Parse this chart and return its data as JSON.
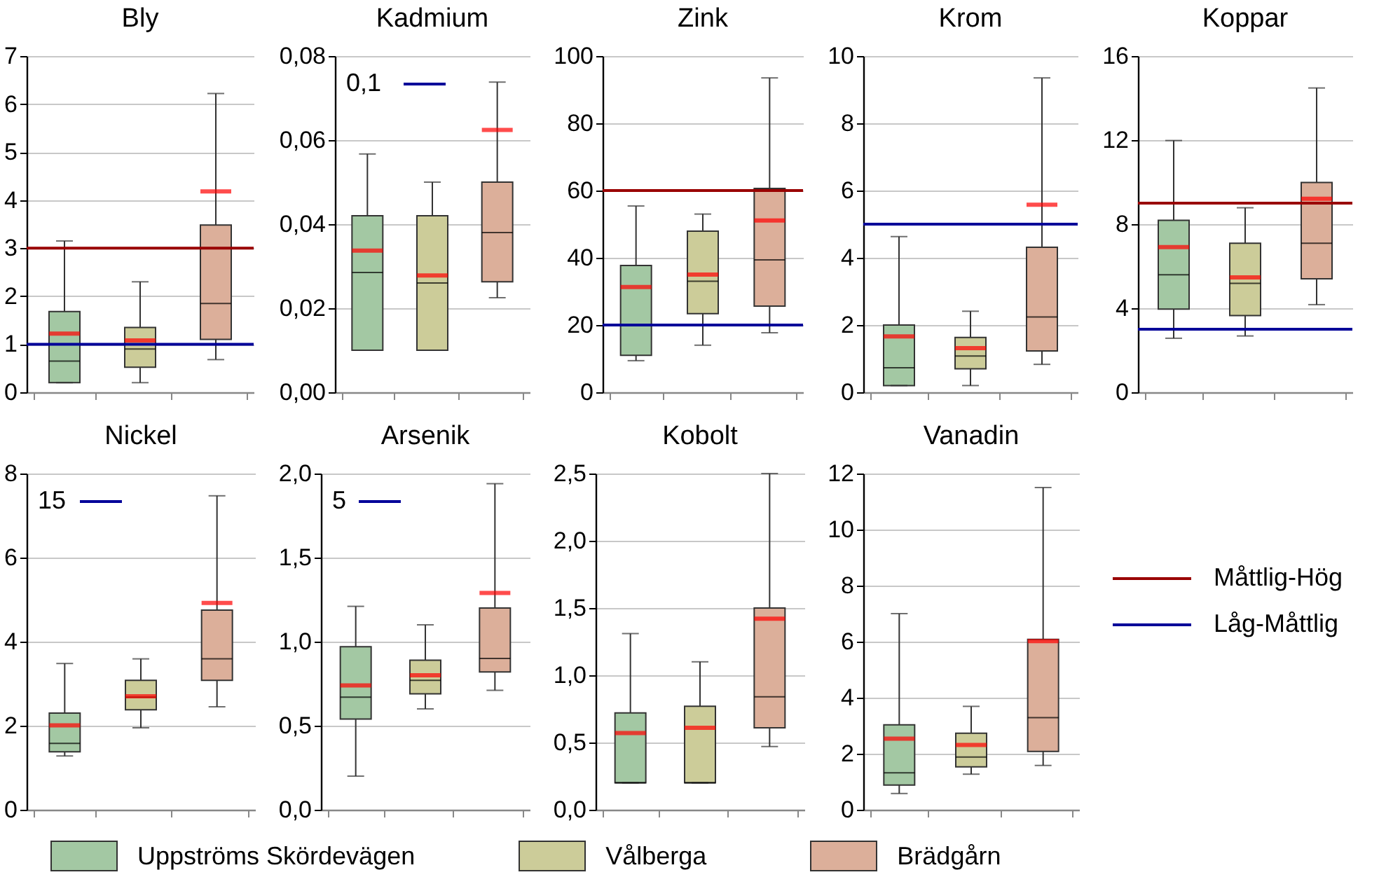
{
  "chart_data": [
    {
      "type": "box",
      "title": "Bly",
      "categories": [
        null,
        null,
        null
      ],
      "ylim": [
        0,
        7
      ],
      "yticks": [
        0,
        1,
        2,
        3,
        4,
        5,
        6,
        7
      ],
      "grid": "y",
      "legend": "bottom",
      "series": [
        {
          "name": "Uppströms Skördevägen",
          "color": "#a3c8a3",
          "boxes": [
            {
              "low": 0.2,
              "q1": 0.2,
              "median": 0.65,
              "q3": 1.68,
              "high": 3.15,
              "mean": 1.22
            },
            null,
            null
          ]
        },
        {
          "name": "Vålberga",
          "color": "#cccc99",
          "boxes": [
            null,
            {
              "low": 0.2,
              "q1": 0.52,
              "median": 0.9,
              "q3": 1.35,
              "high": 2.3,
              "mean": 1.08
            },
            null
          ]
        },
        {
          "name": "Brädgårn",
          "color": "#dcaf9a",
          "boxes": [
            null,
            null,
            {
              "low": 0.68,
              "q1": 1.1,
              "median": 1.85,
              "q3": 3.48,
              "high": 6.22,
              "mean": 4.18
            }
          ]
        }
      ],
      "ref_lines": [
        {
          "axis": "y",
          "value": 3,
          "label": "Måttlig-Hög",
          "color": "#990000"
        },
        {
          "axis": "y",
          "value": 1,
          "label": "Låg-Måttlig",
          "color": "#000099"
        }
      ]
    },
    {
      "type": "box",
      "title": "Kadmium",
      "categories": [
        null,
        null,
        null
      ],
      "ylim": [
        0,
        0.08
      ],
      "yticks": [
        {
          "value": 0,
          "label": "0,00"
        },
        {
          "value": 0.02,
          "label": "0,02"
        },
        {
          "value": 0.04,
          "label": "0,04"
        },
        {
          "value": 0.06,
          "label": "0,06"
        },
        {
          "value": 0.08,
          "label": "0,08"
        }
      ],
      "grid": "y",
      "series": [
        {
          "color": "#a3c8a3",
          "boxes": [
            {
              "low": 0.01,
              "q1": 0.01,
              "median": 0.0285,
              "q3": 0.042,
              "high": 0.0567,
              "mean": 0.0337
            },
            null,
            null
          ]
        },
        {
          "color": "#cccc99",
          "boxes": [
            null,
            {
              "low": 0.01,
              "q1": 0.01,
              "median": 0.026,
              "q3": 0.042,
              "high": 0.05,
              "mean": 0.0278
            },
            null
          ]
        },
        {
          "color": "#dcaf9a",
          "boxes": [
            null,
            null,
            {
              "low": 0.0225,
              "q1": 0.0263,
              "median": 0.038,
              "q3": 0.05,
              "high": 0.0738,
              "mean": 0.0624
            }
          ]
        }
      ],
      "annotations": [
        "0,1"
      ]
    },
    {
      "type": "box",
      "title": "Zink",
      "categories": [
        null,
        null,
        null
      ],
      "ylim": [
        0,
        100
      ],
      "yticks": [
        0,
        20,
        40,
        60,
        80,
        100
      ],
      "grid": "y",
      "series": [
        {
          "color": "#a3c8a3",
          "boxes": [
            {
              "low": 9.4,
              "q1": 11,
              "median": 20,
              "q3": 37.7,
              "high": 55.4,
              "mean": 31.3
            },
            null,
            null
          ]
        },
        {
          "color": "#cccc99",
          "boxes": [
            null,
            {
              "low": 14,
              "q1": 23.4,
              "median": 33,
              "q3": 47.9,
              "high": 53,
              "mean": 35
            },
            null
          ]
        },
        {
          "color": "#dcaf9a",
          "boxes": [
            null,
            null,
            {
              "low": 17.7,
              "q1": 25.6,
              "median": 39.4,
              "q3": 60.6,
              "high": 93.5,
              "mean": 51.1
            }
          ]
        }
      ],
      "ref_lines": [
        {
          "axis": "y",
          "value": 60,
          "color": "#990000"
        },
        {
          "axis": "y",
          "value": 20,
          "color": "#000099"
        }
      ]
    },
    {
      "type": "box",
      "title": "Krom",
      "categories": [
        null,
        null,
        null
      ],
      "ylim": [
        0,
        10
      ],
      "yticks": [
        0,
        2,
        4,
        6,
        8,
        10
      ],
      "grid": "y",
      "series": [
        {
          "color": "#a3c8a3",
          "boxes": [
            {
              "low": 0.2,
              "q1": 0.2,
              "median": 0.73,
              "q3": 2.0,
              "high": 4.63,
              "mean": 1.66
            },
            null,
            null
          ]
        },
        {
          "color": "#cccc99",
          "boxes": [
            null,
            {
              "low": 0.2,
              "q1": 0.7,
              "median": 1.08,
              "q3": 1.63,
              "high": 2.41,
              "mean": 1.31
            },
            null
          ]
        },
        {
          "color": "#dcaf9a",
          "boxes": [
            null,
            null,
            {
              "low": 0.83,
              "q1": 1.23,
              "median": 2.24,
              "q3": 4.31,
              "high": 9.35,
              "mean": 5.58
            }
          ]
        }
      ],
      "ref_lines": [
        {
          "axis": "y",
          "value": 5,
          "color": "#000099"
        }
      ]
    },
    {
      "type": "box",
      "title": "Koppar",
      "categories": [
        null,
        null,
        null
      ],
      "ylim": [
        0,
        16
      ],
      "yticks": [
        0,
        4,
        8,
        12,
        16
      ],
      "grid": "y",
      "series": [
        {
          "color": "#a3c8a3",
          "boxes": [
            {
              "low": 2.57,
              "q1": 3.96,
              "median": 5.59,
              "q3": 8.18,
              "high": 11.98,
              "mean": 6.91
            },
            null,
            null
          ]
        },
        {
          "color": "#cccc99",
          "boxes": [
            null,
            {
              "low": 2.68,
              "q1": 3.65,
              "median": 5.18,
              "q3": 7.09,
              "high": 8.78,
              "mean": 5.47
            },
            null
          ]
        },
        {
          "color": "#dcaf9a",
          "boxes": [
            null,
            null,
            {
              "low": 4.17,
              "q1": 5.4,
              "median": 7.09,
              "q3": 9.98,
              "high": 14.48,
              "mean": 9.21
            }
          ]
        }
      ],
      "ref_lines": [
        {
          "axis": "y",
          "value": 9,
          "color": "#990000"
        },
        {
          "axis": "y",
          "value": 3,
          "color": "#000099"
        }
      ]
    },
    {
      "type": "box",
      "title": "Nickel",
      "categories": [
        null,
        null,
        null
      ],
      "ylim": [
        0,
        8
      ],
      "yticks": [
        0,
        2,
        4,
        6,
        8
      ],
      "grid": "y",
      "series": [
        {
          "color": "#a3c8a3",
          "boxes": [
            {
              "low": 1.28,
              "q1": 1.38,
              "median": 1.58,
              "q3": 2.3,
              "high": 3.48,
              "mean": 2.01
            },
            null,
            null
          ]
        },
        {
          "color": "#cccc99",
          "boxes": [
            null,
            {
              "low": 1.95,
              "q1": 2.38,
              "median": 2.68,
              "q3": 3.08,
              "high": 3.59,
              "mean": 2.7
            },
            null
          ]
        },
        {
          "color": "#dcaf9a",
          "boxes": [
            null,
            null,
            {
              "low": 2.45,
              "q1": 3.08,
              "median": 3.59,
              "q3": 4.75,
              "high": 7.47,
              "mean": 4.92
            }
          ]
        }
      ],
      "annotations": [
        "15"
      ]
    },
    {
      "type": "box",
      "title": "Arsenik",
      "categories": [
        null,
        null,
        null
      ],
      "ylim": [
        0,
        2
      ],
      "yticks": [
        {
          "value": 0,
          "label": "0,0"
        },
        {
          "value": 0.5,
          "label": "0,5"
        },
        {
          "value": 1,
          "label": "1,0"
        },
        {
          "value": 1.5,
          "label": "1,5"
        },
        {
          "value": 2,
          "label": "2,0"
        }
      ],
      "grid": "y",
      "series": [
        {
          "color": "#a3c8a3",
          "boxes": [
            {
              "low": 0.2,
              "q1": 0.54,
              "median": 0.67,
              "q3": 0.97,
              "high": 1.21,
              "mean": 0.74
            },
            null,
            null
          ]
        },
        {
          "color": "#cccc99",
          "boxes": [
            null,
            {
              "low": 0.6,
              "q1": 0.69,
              "median": 0.77,
              "q3": 0.89,
              "high": 1.1,
              "mean": 0.8
            },
            null
          ]
        },
        {
          "color": "#dcaf9a",
          "boxes": [
            null,
            null,
            {
              "low": 0.71,
              "q1": 0.82,
              "median": 0.9,
              "q3": 1.2,
              "high": 1.94,
              "mean": 1.29
            }
          ]
        }
      ],
      "annotations": [
        "5"
      ]
    },
    {
      "type": "box",
      "title": "Kobolt",
      "categories": [
        null,
        null,
        null
      ],
      "ylim": [
        0,
        2.5
      ],
      "yticks": [
        {
          "value": 0,
          "label": "0,0"
        },
        {
          "value": 0.5,
          "label": "0,5"
        },
        {
          "value": 1,
          "label": "1,0"
        },
        {
          "value": 1.5,
          "label": "1,5"
        },
        {
          "value": 2,
          "label": "2,0"
        },
        {
          "value": 2.5,
          "label": "2,5"
        }
      ],
      "grid": "y",
      "series": [
        {
          "color": "#a3c8a3",
          "boxes": [
            {
              "low": 0.2,
              "q1": 0.2,
              "median": 0.2,
              "q3": 0.72,
              "high": 1.31,
              "mean": 0.57
            },
            null,
            null
          ]
        },
        {
          "color": "#cccc99",
          "boxes": [
            null,
            {
              "low": 0.2,
              "q1": 0.2,
              "median": 0.2,
              "q3": 0.77,
              "high": 1.1,
              "mean": 0.61
            },
            null
          ]
        },
        {
          "color": "#dcaf9a",
          "boxes": [
            null,
            null,
            {
              "low": 0.47,
              "q1": 0.61,
              "median": 0.84,
              "q3": 1.5,
              "high": 2.5,
              "mean": 1.42
            }
          ]
        }
      ]
    },
    {
      "type": "box",
      "title": "Vanadin",
      "categories": [
        null,
        null,
        null
      ],
      "ylim": [
        0,
        12
      ],
      "yticks": [
        0,
        2,
        4,
        6,
        8,
        10,
        12
      ],
      "grid": "y",
      "series": [
        {
          "color": "#a3c8a3",
          "boxes": [
            {
              "low": 0.58,
              "q1": 0.88,
              "median": 1.32,
              "q3": 3.03,
              "high": 7.0,
              "mean": 2.54
            },
            null,
            null
          ]
        },
        {
          "color": "#cccc99",
          "boxes": [
            null,
            {
              "low": 1.27,
              "q1": 1.53,
              "median": 1.88,
              "q3": 2.73,
              "high": 3.69,
              "mean": 2.31
            },
            null
          ]
        },
        {
          "color": "#dcaf9a",
          "boxes": [
            null,
            null,
            {
              "low": 1.58,
              "q1": 2.08,
              "median": 3.29,
              "q3": 6.08,
              "high": 11.5,
              "mean": 6.02
            }
          ]
        }
      ]
    }
  ]
}
